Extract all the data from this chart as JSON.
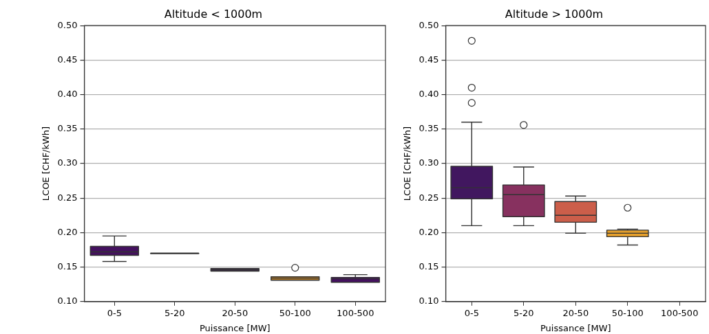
{
  "chart_data": [
    {
      "type": "box",
      "title": "Altitude < 1000m",
      "xlabel": "Puissance [MW]",
      "ylabel": "LCOE [CHF/kWh]",
      "categories": [
        "0-5",
        "5-20",
        "20-50",
        "50-100",
        "100-500"
      ],
      "colors": [
        "#44115f",
        "#3a2a55",
        "#3a2a45",
        "#b57d2a",
        "#44115f"
      ],
      "boxes": [
        {
          "low": 0.158,
          "q1": 0.167,
          "median": 0.172,
          "q3": 0.18,
          "high": 0.195
        },
        {
          "low": 0.17,
          "q1": 0.17,
          "median": 0.17,
          "q3": 0.17,
          "high": 0.17
        },
        {
          "low": 0.144,
          "q1": 0.144,
          "median": 0.146,
          "q3": 0.148,
          "high": 0.148
        },
        {
          "low": 0.131,
          "q1": 0.131,
          "median": 0.134,
          "q3": 0.136,
          "high": 0.136,
          "outliers": [
            0.149
          ]
        },
        {
          "low": 0.128,
          "q1": 0.128,
          "median": 0.133,
          "q3": 0.135,
          "high": 0.139
        }
      ],
      "ylim": [
        0.1,
        0.5
      ],
      "yticks": [
        {
          "value": 0.1,
          "label": "0.10"
        },
        {
          "value": 0.15,
          "label": "0.15"
        },
        {
          "value": 0.2,
          "label": "0.20"
        },
        {
          "value": 0.25,
          "label": "0.25"
        },
        {
          "value": 0.3,
          "label": "0.30"
        },
        {
          "value": 0.35,
          "label": "0.35"
        },
        {
          "value": 0.4,
          "label": "0.40"
        },
        {
          "value": 0.45,
          "label": "0.45"
        },
        {
          "value": 0.5,
          "label": "0.50"
        }
      ],
      "grid": "y"
    },
    {
      "type": "box",
      "title": "Altitude > 1000m",
      "xlabel": "Puissance [MW]",
      "ylabel": "LCOE [CHF/kWh]",
      "categories": [
        "0-5",
        "5-20",
        "20-50",
        "50-100",
        "100-500"
      ],
      "colors": [
        "#41175f",
        "#87315f",
        "#cc5e4a",
        "#e6a02c",
        null
      ],
      "boxes": [
        {
          "low": 0.21,
          "q1": 0.249,
          "median": 0.265,
          "q3": 0.296,
          "high": 0.36,
          "outliers": [
            0.388,
            0.41,
            0.478
          ]
        },
        {
          "low": 0.21,
          "q1": 0.223,
          "median": 0.255,
          "q3": 0.269,
          "high": 0.295,
          "outliers": [
            0.356
          ]
        },
        {
          "low": 0.199,
          "q1": 0.215,
          "median": 0.225,
          "q3": 0.245,
          "high": 0.253
        },
        {
          "low": 0.182,
          "q1": 0.194,
          "median": 0.199,
          "q3": 0.2035,
          "high": 0.205,
          "outliers": [
            0.236
          ]
        },
        null
      ],
      "ylim": [
        0.1,
        0.5
      ],
      "yticks": [
        {
          "value": 0.1,
          "label": "0.10"
        },
        {
          "value": 0.15,
          "label": "0.15"
        },
        {
          "value": 0.2,
          "label": "0.20"
        },
        {
          "value": 0.25,
          "label": "0.25"
        },
        {
          "value": 0.3,
          "label": "0.30"
        },
        {
          "value": 0.35,
          "label": "0.35"
        },
        {
          "value": 0.4,
          "label": "0.40"
        },
        {
          "value": 0.45,
          "label": "0.45"
        },
        {
          "value": 0.5,
          "label": "0.50"
        }
      ],
      "grid": "y"
    }
  ]
}
